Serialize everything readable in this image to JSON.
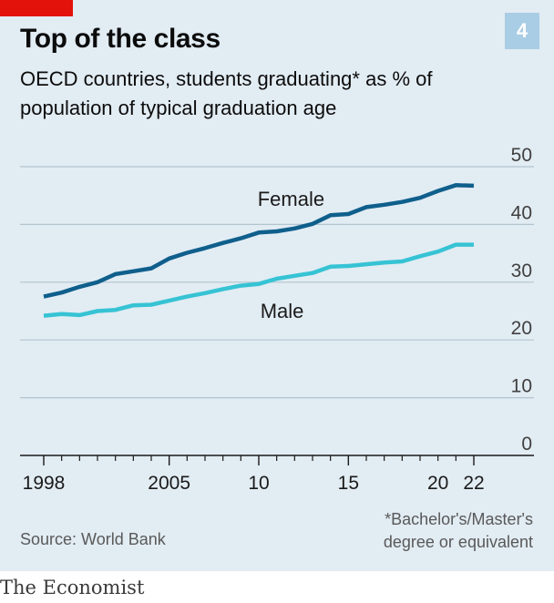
{
  "header": {
    "title": "Top of the class",
    "subtitle": "OECD countries, students graduating* as % of population of typical graduation age",
    "chart_number": "4"
  },
  "footer": {
    "source": "Source: World Bank",
    "footnote_line1": "*Bachelor's/Master's",
    "footnote_line2": "degree or equivalent",
    "brand": "The Economist"
  },
  "colors": {
    "background": "#e2ecf3",
    "female": "#0f5f8c",
    "male": "#36c3d4",
    "accent_red": "#e3120b",
    "number_box": "#a9cde4"
  },
  "chart_data": {
    "type": "line",
    "title": "Top of the class",
    "xlabel": "",
    "ylabel": "",
    "xlim": [
      1998,
      2022
    ],
    "ylim": [
      0,
      50
    ],
    "x_ticks": [
      1998,
      2005,
      2010,
      2015,
      2022
    ],
    "x_tick_labels": [
      "1998",
      "2005",
      "10",
      "15",
      "22"
    ],
    "x_minor_ticks": [
      1999,
      2000,
      2001,
      2002,
      2003,
      2004,
      2006,
      2007,
      2008,
      2009,
      2011,
      2012,
      2013,
      2014,
      2016,
      2017,
      2018,
      2019,
      2020,
      2021
    ],
    "extra_x_labels": [
      {
        "x": 2020,
        "label": "20"
      }
    ],
    "y_ticks": [
      0,
      10,
      20,
      30,
      40,
      50
    ],
    "y_tick_labels": [
      "0",
      "10",
      "20",
      "30",
      "40",
      "50"
    ],
    "grid": true,
    "y_axis_side": "right",
    "x": [
      1998,
      1999,
      2000,
      2001,
      2002,
      2003,
      2004,
      2005,
      2006,
      2007,
      2008,
      2009,
      2010,
      2011,
      2012,
      2013,
      2014,
      2015,
      2016,
      2017,
      2018,
      2019,
      2020,
      2021,
      2022
    ],
    "series": [
      {
        "name": "Female",
        "color": "#0f5f8c",
        "values": [
          27.5,
          28.2,
          29.2,
          30.0,
          31.4,
          31.9,
          32.4,
          34.1,
          35.1,
          35.9,
          36.8,
          37.6,
          38.6,
          38.8,
          39.3,
          40.1,
          41.6,
          41.8,
          43.0,
          43.4,
          43.9,
          44.6,
          45.8,
          46.8,
          46.7
        ]
      },
      {
        "name": "Male",
        "color": "#36c3d4",
        "values": [
          24.2,
          24.5,
          24.3,
          25.0,
          25.2,
          26.0,
          26.1,
          26.8,
          27.5,
          28.1,
          28.8,
          29.4,
          29.7,
          30.6,
          31.1,
          31.6,
          32.7,
          32.8,
          33.1,
          33.4,
          33.6,
          34.5,
          35.3,
          36.5,
          36.5
        ]
      }
    ],
    "annotations": [
      {
        "text": "Female",
        "series": "Female"
      },
      {
        "text": "Male",
        "series": "Male"
      }
    ]
  }
}
